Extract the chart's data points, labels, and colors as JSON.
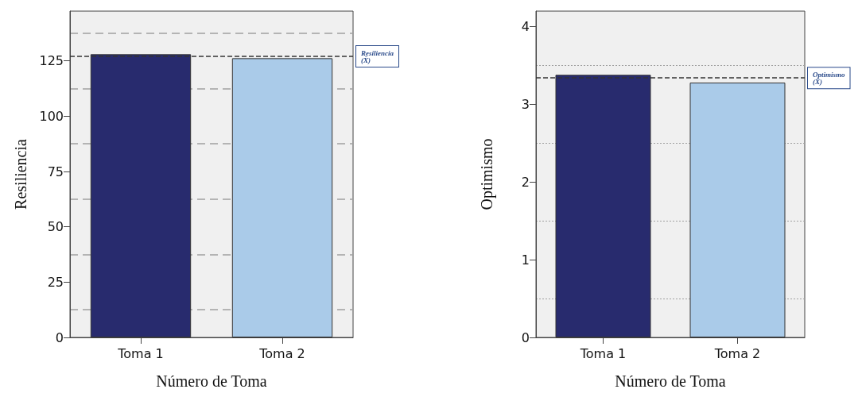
{
  "chart_data": [
    {
      "type": "bar",
      "xlabel": "Número de Toma",
      "ylabel": "Resiliencia",
      "categories": [
        "Toma 1",
        "Toma 2"
      ],
      "values": [
        128,
        126.2
      ],
      "colors": [
        "#282b6e",
        "#aacbe9"
      ],
      "ylim": [
        0,
        147.5
      ],
      "yticks": [
        0,
        25,
        50,
        75,
        100,
        125
      ],
      "grid": "y",
      "ref_lines": [
        {
          "axis": "y",
          "value": 127,
          "label": "Resiliencia (X̄)",
          "line_style": "dashed",
          "color": "#333333"
        }
      ]
    },
    {
      "type": "bar",
      "xlabel": "Número de Toma",
      "ylabel": "Optimismo",
      "categories": [
        "Toma 1",
        "Toma 2"
      ],
      "values": [
        3.38,
        3.28
      ],
      "colors": [
        "#282b6e",
        "#aacbe9"
      ],
      "ylim": [
        0,
        4.2
      ],
      "yticks": [
        0,
        1,
        2,
        3,
        4
      ],
      "grid": "y",
      "ref_lines": [
        {
          "axis": "y",
          "value": 3.34,
          "label": "Optimismo (X̄)",
          "line_style": "dashed",
          "color": "#333333"
        }
      ]
    }
  ]
}
